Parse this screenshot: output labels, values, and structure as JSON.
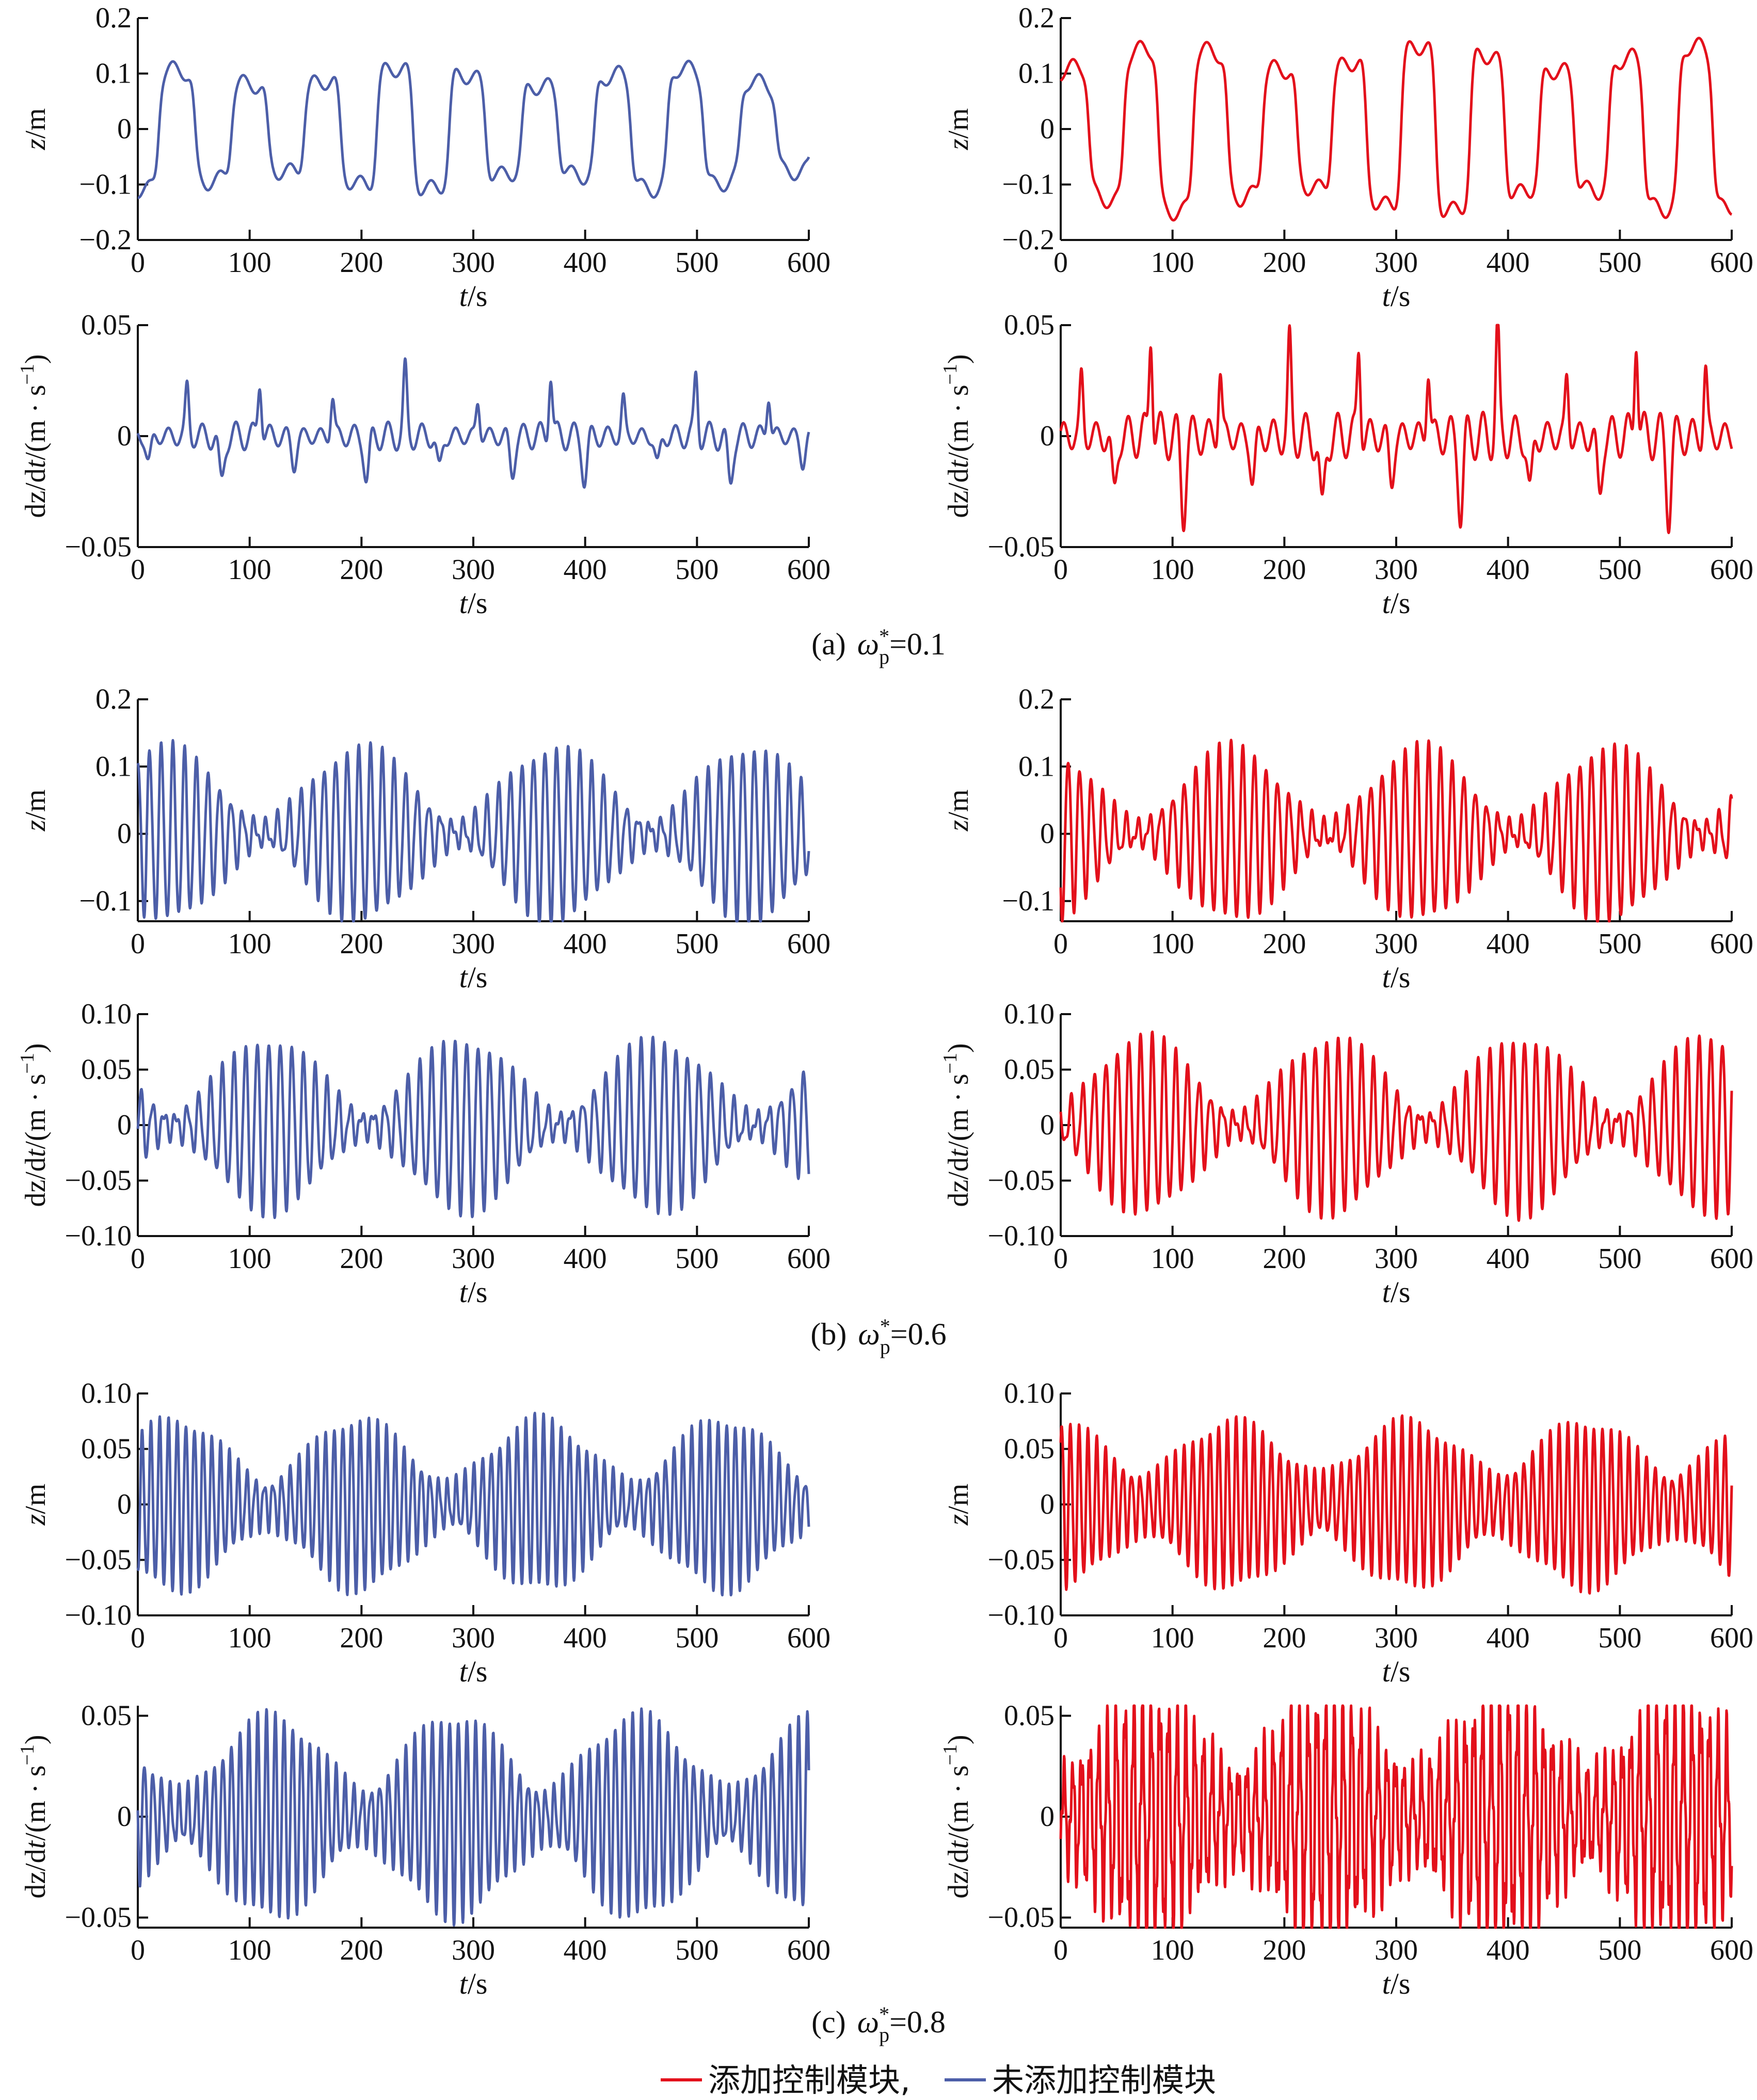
{
  "colors": {
    "blue": "#4c5ea8",
    "red": "#e3101b",
    "axis": "#111111"
  },
  "legend": {
    "controlled": "添加控制模块,",
    "uncontrolled": "未添加控制模块"
  },
  "captions": [
    {
      "prefix": "(a)",
      "omega": "ω",
      "sup": "*",
      "sub": "p",
      "value": "=0.1"
    },
    {
      "prefix": "(b)",
      "omega": "ω",
      "sup": "*",
      "sub": "p",
      "value": "=0.6"
    },
    {
      "prefix": "(c)",
      "omega": "ω",
      "sup": "*",
      "sub": "p",
      "value": "=0.8"
    }
  ],
  "xlabel": {
    "var": "t",
    "unit": "/s"
  },
  "ylabels": {
    "z": {
      "var": "z",
      "unit": "/m"
    },
    "dz": {
      "pre": "dz/d",
      "var": "t",
      "unit": "/(m · s",
      "exp": "−1",
      "close": ")"
    }
  },
  "chart_data": [
    {
      "panel": "a-z-uncontrolled",
      "type": "line",
      "series": [
        {
          "color": "blue"
        }
      ],
      "ylabel": "z/m",
      "xlabel": "t/s",
      "xlim": [
        0,
        600
      ],
      "ylim": [
        -0.2,
        0.2
      ],
      "yticks": [
        "0.2",
        "0.1",
        "0",
        "−0.1",
        "−0.2"
      ],
      "xticks": [
        "0",
        "100",
        "200",
        "300",
        "400",
        "500",
        "600"
      ],
      "shape": {
        "kind": "square",
        "amp": 0.11,
        "period": 65
      }
    },
    {
      "panel": "a-z-controlled",
      "type": "line",
      "series": [
        {
          "color": "red"
        }
      ],
      "ylabel": "z/m",
      "xlabel": "t/s",
      "xlim": [
        0,
        600
      ],
      "ylim": [
        -0.2,
        0.2
      ],
      "yticks": [
        "0.2",
        "0.1",
        "0",
        "−0.1",
        "−0.2"
      ],
      "xticks": [
        "0",
        "100",
        "200",
        "300",
        "400",
        "500",
        "600"
      ],
      "shape": {
        "kind": "square",
        "amp": 0.15,
        "period": 62
      }
    },
    {
      "panel": "a-dz-uncontrolled",
      "type": "line",
      "series": [
        {
          "color": "blue"
        }
      ],
      "ylabel": "dz/dt/(m·s−1)",
      "xlabel": "t/s",
      "xlim": [
        0,
        600
      ],
      "ylim": [
        -0.05,
        0.05
      ],
      "yticks": [
        "0.05",
        "0",
        "−0.05"
      ],
      "xticks": [
        "0",
        "100",
        "200",
        "300",
        "400",
        "500",
        "600"
      ],
      "shape": {
        "kind": "spiky",
        "amp": 0.028,
        "period": 65
      }
    },
    {
      "panel": "a-dz-controlled",
      "type": "line",
      "series": [
        {
          "color": "red"
        }
      ],
      "ylabel": "dz/dt/(m·s−1)",
      "xlabel": "t/s",
      "xlim": [
        0,
        600
      ],
      "ylim": [
        -0.05,
        0.05
      ],
      "yticks": [
        "0.05",
        "0",
        "−0.05"
      ],
      "xticks": [
        "0",
        "100",
        "200",
        "300",
        "400",
        "500",
        "600"
      ],
      "shape": {
        "kind": "spiky",
        "amp": 0.047,
        "period": 62
      }
    },
    {
      "panel": "b-z-uncontrolled",
      "type": "line",
      "series": [
        {
          "color": "blue"
        }
      ],
      "ylabel": "z/m",
      "xlabel": "t/s",
      "xlim": [
        0,
        600
      ],
      "ylim": [
        -0.13,
        0.2
      ],
      "yticks": [
        "0.2",
        "0.1",
        "0",
        "−0.1"
      ],
      "xticks": [
        "0",
        "100",
        "200",
        "300",
        "400",
        "500",
        "600"
      ],
      "shape": {
        "kind": "beat",
        "amp": 0.13,
        "period": 10.4,
        "beat": 330
      }
    },
    {
      "panel": "b-z-controlled",
      "type": "line",
      "series": [
        {
          "color": "red"
        }
      ],
      "ylabel": "z/m",
      "xlabel": "t/s",
      "xlim": [
        0,
        600
      ],
      "ylim": [
        -0.13,
        0.2
      ],
      "yticks": [
        "0.2",
        "0.1",
        "0",
        "−0.1"
      ],
      "xticks": [
        "0",
        "100",
        "200",
        "300",
        "400",
        "500",
        "600"
      ],
      "shape": {
        "kind": "beat",
        "amp": 0.13,
        "period": 10.4,
        "beat": 320
      }
    },
    {
      "panel": "b-dz-uncontrolled",
      "type": "line",
      "series": [
        {
          "color": "blue"
        }
      ],
      "ylabel": "dz/dt/(m·s−1)",
      "xlabel": "t/s",
      "xlim": [
        0,
        600
      ],
      "ylim": [
        -0.1,
        0.1
      ],
      "yticks": [
        "0.10",
        "0.05",
        "0",
        "−0.05",
        "−0.10"
      ],
      "xticks": [
        "0",
        "100",
        "200",
        "300",
        "400",
        "500",
        "600"
      ],
      "shape": {
        "kind": "beat",
        "amp": 0.078,
        "period": 10.4,
        "beat": 330
      }
    },
    {
      "panel": "b-dz-controlled",
      "type": "line",
      "series": [
        {
          "color": "red"
        }
      ],
      "ylabel": "dz/dt/(m·s−1)",
      "xlabel": "t/s",
      "xlim": [
        0,
        600
      ],
      "ylim": [
        -0.1,
        0.1
      ],
      "yticks": [
        "0.10",
        "0.05",
        "0",
        "−0.05",
        "−0.10"
      ],
      "xticks": [
        "0",
        "100",
        "200",
        "300",
        "400",
        "500",
        "600"
      ],
      "shape": {
        "kind": "beat",
        "amp": 0.08,
        "period": 10.4,
        "beat": 320
      }
    },
    {
      "panel": "c-z-uncontrolled",
      "type": "line",
      "series": [
        {
          "color": "blue"
        }
      ],
      "ylabel": "z/m",
      "xlabel": "t/s",
      "xlim": [
        0,
        600
      ],
      "ylim": [
        -0.1,
        0.1
      ],
      "yticks": [
        "0.10",
        "0.05",
        "0",
        "−0.05",
        "−0.10"
      ],
      "xticks": [
        "0",
        "100",
        "200",
        "300",
        "400",
        "500",
        "600"
      ],
      "shape": {
        "kind": "beat",
        "amp": 0.077,
        "period": 7.8,
        "beat": 310,
        "floor": 0.25
      }
    },
    {
      "panel": "c-z-controlled",
      "type": "line",
      "series": [
        {
          "color": "red"
        }
      ],
      "ylabel": "z/m",
      "xlabel": "t/s",
      "xlim": [
        0,
        600
      ],
      "ylim": [
        -0.1,
        0.1
      ],
      "yticks": [
        "0.10",
        "0.05",
        "0",
        "−0.05",
        "−0.10"
      ],
      "xticks": [
        "0",
        "100",
        "200",
        "300",
        "400",
        "500",
        "600"
      ],
      "shape": {
        "kind": "beat",
        "amp": 0.075,
        "period": 7.8,
        "beat": 300,
        "floor": 0.35
      }
    },
    {
      "panel": "c-dz-uncontrolled",
      "type": "line",
      "series": [
        {
          "color": "blue"
        }
      ],
      "ylabel": "dz/dt/(m·s−1)",
      "xlabel": "t/s",
      "xlim": [
        0,
        600
      ],
      "ylim": [
        -0.055,
        0.055
      ],
      "yticks": [
        "0.05",
        "0",
        "−0.05"
      ],
      "xticks": [
        "0",
        "100",
        "200",
        "300",
        "400",
        "500",
        "600"
      ],
      "shape": {
        "kind": "beat",
        "amp": 0.05,
        "period": 7.8,
        "beat": 310,
        "floor": 0.25
      }
    },
    {
      "panel": "c-dz-controlled",
      "type": "line",
      "series": [
        {
          "color": "red"
        }
      ],
      "ylabel": "dz/dt/(m·s−1)",
      "xlabel": "t/s",
      "xlim": [
        0,
        600
      ],
      "ylim": [
        -0.055,
        0.055
      ],
      "yticks": [
        "0.05",
        "0",
        "−0.05"
      ],
      "xticks": [
        "0",
        "100",
        "200",
        "300",
        "400",
        "500",
        "600"
      ],
      "shape": {
        "kind": "beat",
        "amp": 0.055,
        "period": 7.8,
        "beat": 300,
        "floor": 0.4,
        "jag": 0.3
      }
    }
  ]
}
